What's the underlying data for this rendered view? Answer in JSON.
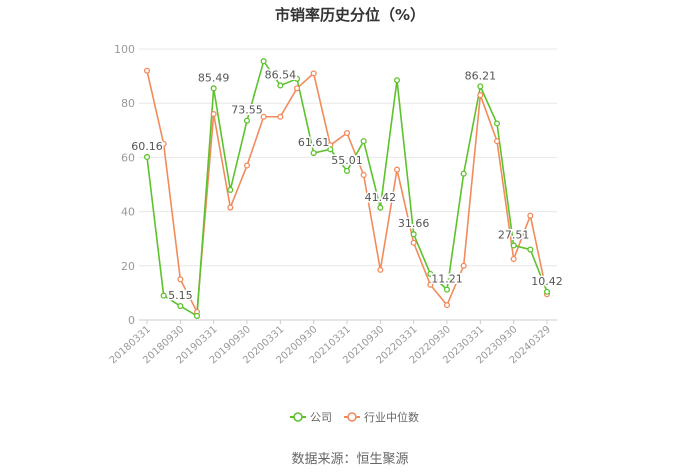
{
  "title": "市销率历史分位（%）",
  "source": "数据来源：恒生聚源",
  "colors": {
    "company": "#5dc22c",
    "industry": "#f28b5c",
    "grid": "#e8e8e8",
    "axis": "#cccccc"
  },
  "chart_data": {
    "type": "line",
    "title": "市销率历史分位（%）",
    "ylim": [
      0,
      100
    ],
    "yticks": [
      0,
      20,
      40,
      60,
      80,
      100
    ],
    "grid": true,
    "legend_position": "bottom",
    "x": [
      "20180331",
      "20180630",
      "20180930",
      "20181231",
      "20190331",
      "20190630",
      "20190930",
      "20191231",
      "20200331",
      "20200630",
      "20200930",
      "20201231",
      "20210331",
      "20210630",
      "20210930",
      "20211231",
      "20220331",
      "20220630",
      "20220930",
      "20221231",
      "20230331",
      "20230630",
      "20230930",
      "20231231",
      "20240329"
    ],
    "x_tick_labels": [
      "20180331",
      "20180930",
      "20190331",
      "20190930",
      "20200331",
      "20200930",
      "20210331",
      "20210930",
      "20220331",
      "20220930",
      "20230331",
      "20230930",
      "20240329"
    ],
    "series": [
      {
        "name": "公司",
        "values": [
          60.16,
          9.0,
          5.15,
          1.5,
          85.49,
          48.0,
          73.55,
          95.5,
          86.54,
          89.0,
          61.61,
          63.0,
          55.01,
          66.0,
          41.42,
          88.5,
          31.66,
          17.0,
          11.21,
          54.0,
          86.21,
          72.5,
          27.51,
          26.0,
          10.42
        ]
      },
      {
        "name": "行业中位数",
        "values": [
          92.0,
          65.0,
          15.0,
          3.0,
          76.0,
          41.5,
          57.0,
          75.0,
          75.0,
          85.5,
          91.0,
          64.5,
          69.0,
          53.5,
          18.5,
          55.5,
          28.5,
          13.0,
          5.5,
          20.0,
          83.0,
          66.0,
          22.5,
          38.5,
          9.5
        ]
      }
    ],
    "data_labels": [
      {
        "series": 0,
        "index": 0,
        "text": "60.16"
      },
      {
        "series": 0,
        "index": 2,
        "text": "5.15"
      },
      {
        "series": 0,
        "index": 4,
        "text": "85.49"
      },
      {
        "series": 0,
        "index": 6,
        "text": "73.55"
      },
      {
        "series": 0,
        "index": 8,
        "text": "86.54"
      },
      {
        "series": 0,
        "index": 10,
        "text": "61.61"
      },
      {
        "series": 0,
        "index": 12,
        "text": "55.01"
      },
      {
        "series": 0,
        "index": 14,
        "text": "41.42"
      },
      {
        "series": 0,
        "index": 16,
        "text": "31.66"
      },
      {
        "series": 0,
        "index": 18,
        "text": "11.21"
      },
      {
        "series": 0,
        "index": 20,
        "text": "86.21"
      },
      {
        "series": 0,
        "index": 22,
        "text": "27.51"
      },
      {
        "series": 0,
        "index": 24,
        "text": "10.42"
      }
    ]
  }
}
